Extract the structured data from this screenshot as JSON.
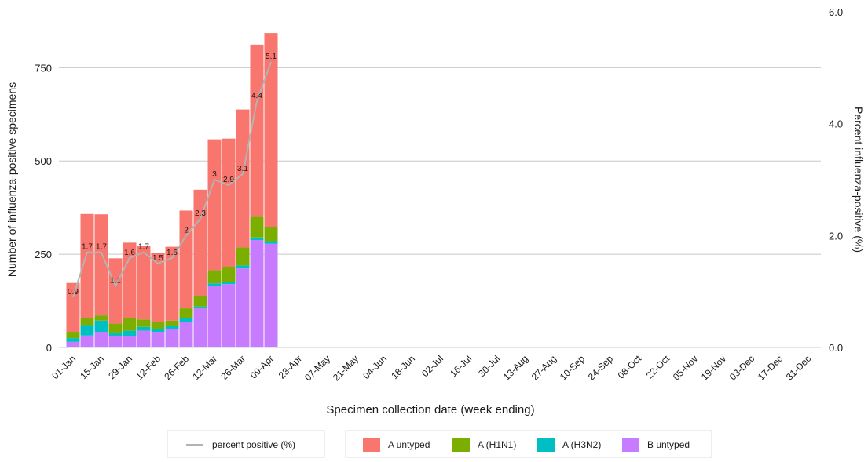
{
  "chart_data": {
    "type": "bar",
    "stacked": true,
    "categories": [
      "01-Jan",
      null,
      "15-Jan",
      null,
      "29-Jan",
      null,
      "12-Feb",
      null,
      "26-Feb",
      null,
      "12-Mar",
      null,
      "26-Mar",
      null,
      "09-Apr",
      null,
      "23-Apr",
      null,
      "07-May",
      null,
      "21-May",
      null,
      "04-Jun",
      null,
      "18-Jun",
      null,
      "02-Jul",
      null,
      "16-Jul",
      null,
      "30-Jul",
      null,
      "13-Aug",
      null,
      "27-Aug",
      null,
      "10-Sep",
      null,
      "24-Sep",
      null,
      "08-Oct",
      null,
      "22-Oct",
      null,
      "05-Nov",
      null,
      "19-Nov",
      null,
      "03-Dec",
      null,
      "17-Dec",
      null,
      "31-Dec"
    ],
    "series": [
      {
        "name": "A untyped",
        "color": "#F8766D",
        "values": [
          131,
          279,
          271,
          175,
          203,
          198,
          186,
          198,
          262,
          286,
          351,
          345,
          370,
          462,
          521,
          null,
          null,
          null,
          null,
          null,
          null,
          null,
          null,
          null,
          null,
          null,
          null,
          null,
          null,
          null,
          null,
          null,
          null,
          null,
          null,
          null,
          null,
          null,
          null,
          null,
          null,
          null,
          null,
          null,
          null,
          null,
          null,
          null,
          null,
          null,
          null,
          null,
          null
        ]
      },
      {
        "name": "A (H1N1)",
        "color": "#7CAE00",
        "values": [
          17,
          19,
          14,
          24,
          33,
          20,
          18,
          15,
          27,
          27,
          35,
          40,
          48,
          55,
          37,
          null,
          null,
          null,
          null,
          null,
          null,
          null,
          null,
          null,
          null,
          null,
          null,
          null,
          null,
          null,
          null,
          null,
          null,
          null,
          null,
          null,
          null,
          null,
          null,
          null,
          null,
          null,
          null,
          null,
          null,
          null,
          null,
          null,
          null,
          null,
          null,
          null,
          null
        ]
      },
      {
        "name": "A (H3N2)",
        "color": "#00BFC4",
        "values": [
          10,
          28,
          30,
          10,
          15,
          10,
          8,
          7,
          10,
          5,
          7,
          5,
          8,
          7,
          7,
          null,
          null,
          null,
          null,
          null,
          null,
          null,
          null,
          null,
          null,
          null,
          null,
          null,
          null,
          null,
          null,
          null,
          null,
          null,
          null,
          null,
          null,
          null,
          null,
          null,
          null,
          null,
          null,
          null,
          null,
          null,
          null,
          null,
          null,
          null,
          null,
          null,
          null
        ]
      },
      {
        "name": "B untyped",
        "color": "#C77CFF",
        "values": [
          15,
          32,
          42,
          30,
          30,
          45,
          42,
          50,
          68,
          105,
          165,
          170,
          212,
          288,
          278,
          null,
          null,
          null,
          null,
          null,
          null,
          null,
          null,
          null,
          null,
          null,
          null,
          null,
          null,
          null,
          null,
          null,
          null,
          null,
          null,
          null,
          null,
          null,
          null,
          null,
          null,
          null,
          null,
          null,
          null,
          null,
          null,
          null,
          null,
          null,
          null,
          null,
          null
        ]
      },
      {
        "name": "percent positive (%)",
        "type": "line",
        "axis": "y2",
        "color": "#b3b3b3",
        "values": [
          0.9,
          1.7,
          1.7,
          1.1,
          1.6,
          1.7,
          1.5,
          1.6,
          2,
          2.3,
          3,
          2.9,
          3.1,
          4.4,
          5.1,
          null,
          null,
          null,
          null,
          null,
          null,
          null,
          null,
          null,
          null,
          null,
          null,
          null,
          null,
          null,
          null,
          null,
          null,
          null,
          null,
          null,
          null,
          null,
          null,
          null,
          null,
          null,
          null,
          null,
          null,
          null,
          null,
          null,
          null,
          null,
          null,
          null,
          null
        ]
      }
    ],
    "ylim": [
      0,
      900
    ],
    "yticks": [
      0,
      250,
      500,
      750
    ],
    "y2lim": [
      0,
      6
    ],
    "y2ticks": [
      {
        "value": 0,
        "label": "0.0"
      },
      {
        "value": 2,
        "label": "2.0"
      },
      {
        "value": 4,
        "label": "4.0"
      },
      {
        "value": 6,
        "label": "6.0"
      }
    ],
    "xlabel": "Specimen collection date (week ending)",
    "ylabel": "Number of influenza-positive specimens",
    "y2label": "Percent influenza-positive (%)",
    "grid": true,
    "legend": "bottom"
  }
}
